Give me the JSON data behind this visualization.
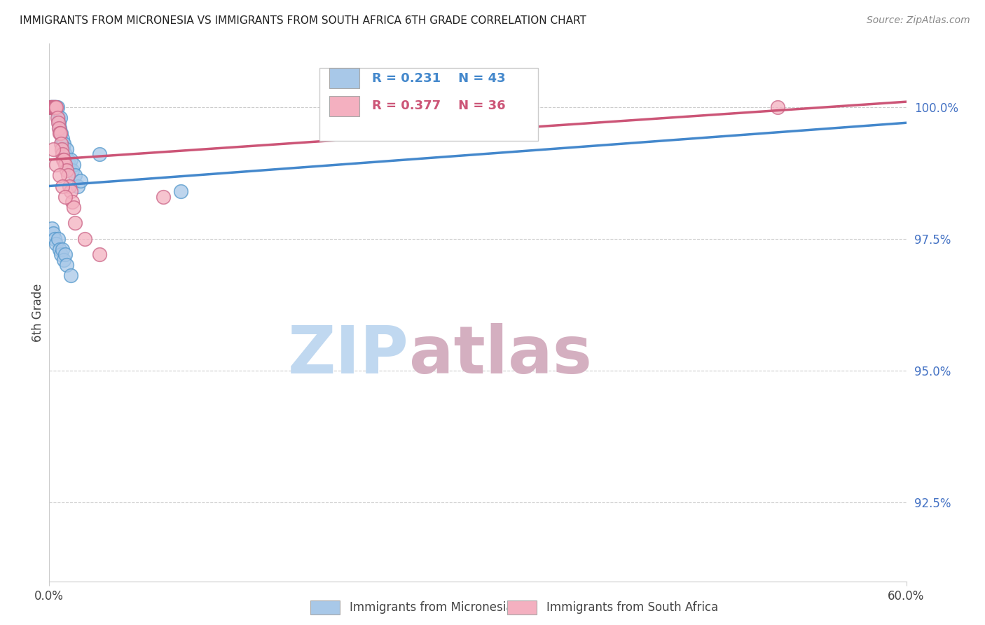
{
  "title": "IMMIGRANTS FROM MICRONESIA VS IMMIGRANTS FROM SOUTH AFRICA 6TH GRADE CORRELATION CHART",
  "source": "Source: ZipAtlas.com",
  "xlabel_blue": "Immigrants from Micronesia",
  "xlabel_pink": "Immigrants from South Africa",
  "ylabel": "6th Grade",
  "xmin": 0.0,
  "xmax": 60.0,
  "ymin": 91.0,
  "ymax": 101.2,
  "yticks": [
    92.5,
    95.0,
    97.5,
    100.0
  ],
  "ytick_labels": [
    "92.5%",
    "95.0%",
    "97.5%",
    "100.0%"
  ],
  "xtick_labels": [
    "0.0%",
    "60.0%"
  ],
  "r_blue": 0.231,
  "n_blue": 43,
  "r_pink": 0.377,
  "n_pink": 36,
  "color_blue": "#a8c8e8",
  "color_pink": "#f4b0c0",
  "edge_blue": "#5599cc",
  "edge_pink": "#cc6688",
  "line_blue": "#4488cc",
  "line_pink": "#cc5577",
  "watermark_zip": "ZIP",
  "watermark_atlas": "atlas",
  "watermark_color_zip": "#c8ddf0",
  "watermark_color_atlas": "#c8a0b8",
  "blue_x": [
    0.1,
    0.15,
    0.2,
    0.25,
    0.3,
    0.35,
    0.4,
    0.45,
    0.5,
    0.55,
    0.6,
    0.65,
    0.7,
    0.75,
    0.8,
    0.85,
    0.9,
    0.95,
    1.0,
    1.1,
    1.2,
    1.3,
    1.4,
    1.5,
    1.6,
    1.7,
    1.8,
    2.0,
    2.2,
    0.2,
    0.3,
    0.4,
    0.5,
    0.6,
    0.7,
    0.8,
    0.9,
    1.0,
    1.1,
    1.2,
    1.5,
    9.2,
    3.5
  ],
  "blue_y": [
    100.0,
    100.0,
    100.0,
    100.0,
    100.0,
    100.0,
    100.0,
    100.0,
    100.0,
    100.0,
    99.8,
    99.7,
    99.6,
    99.8,
    99.5,
    99.3,
    99.4,
    99.2,
    99.3,
    99.1,
    99.2,
    99.0,
    98.9,
    99.0,
    98.8,
    98.9,
    98.7,
    98.5,
    98.6,
    97.7,
    97.6,
    97.5,
    97.4,
    97.5,
    97.3,
    97.2,
    97.3,
    97.1,
    97.2,
    97.0,
    96.8,
    98.4,
    99.1
  ],
  "pink_x": [
    0.1,
    0.15,
    0.2,
    0.25,
    0.3,
    0.35,
    0.4,
    0.45,
    0.5,
    0.55,
    0.6,
    0.65,
    0.7,
    0.75,
    0.8,
    0.85,
    0.9,
    0.95,
    1.0,
    1.1,
    1.2,
    1.3,
    1.4,
    1.5,
    1.6,
    1.7,
    0.3,
    0.5,
    0.7,
    0.9,
    1.1,
    1.8,
    2.5,
    3.5,
    51.0,
    8.0
  ],
  "pink_y": [
    100.0,
    100.0,
    100.0,
    100.0,
    100.0,
    100.0,
    100.0,
    100.0,
    100.0,
    99.8,
    99.7,
    99.6,
    99.5,
    99.5,
    99.3,
    99.2,
    99.1,
    99.0,
    99.0,
    98.9,
    98.8,
    98.7,
    98.5,
    98.4,
    98.2,
    98.1,
    99.2,
    98.9,
    98.7,
    98.5,
    98.3,
    97.8,
    97.5,
    97.2,
    100.0,
    98.3
  ]
}
